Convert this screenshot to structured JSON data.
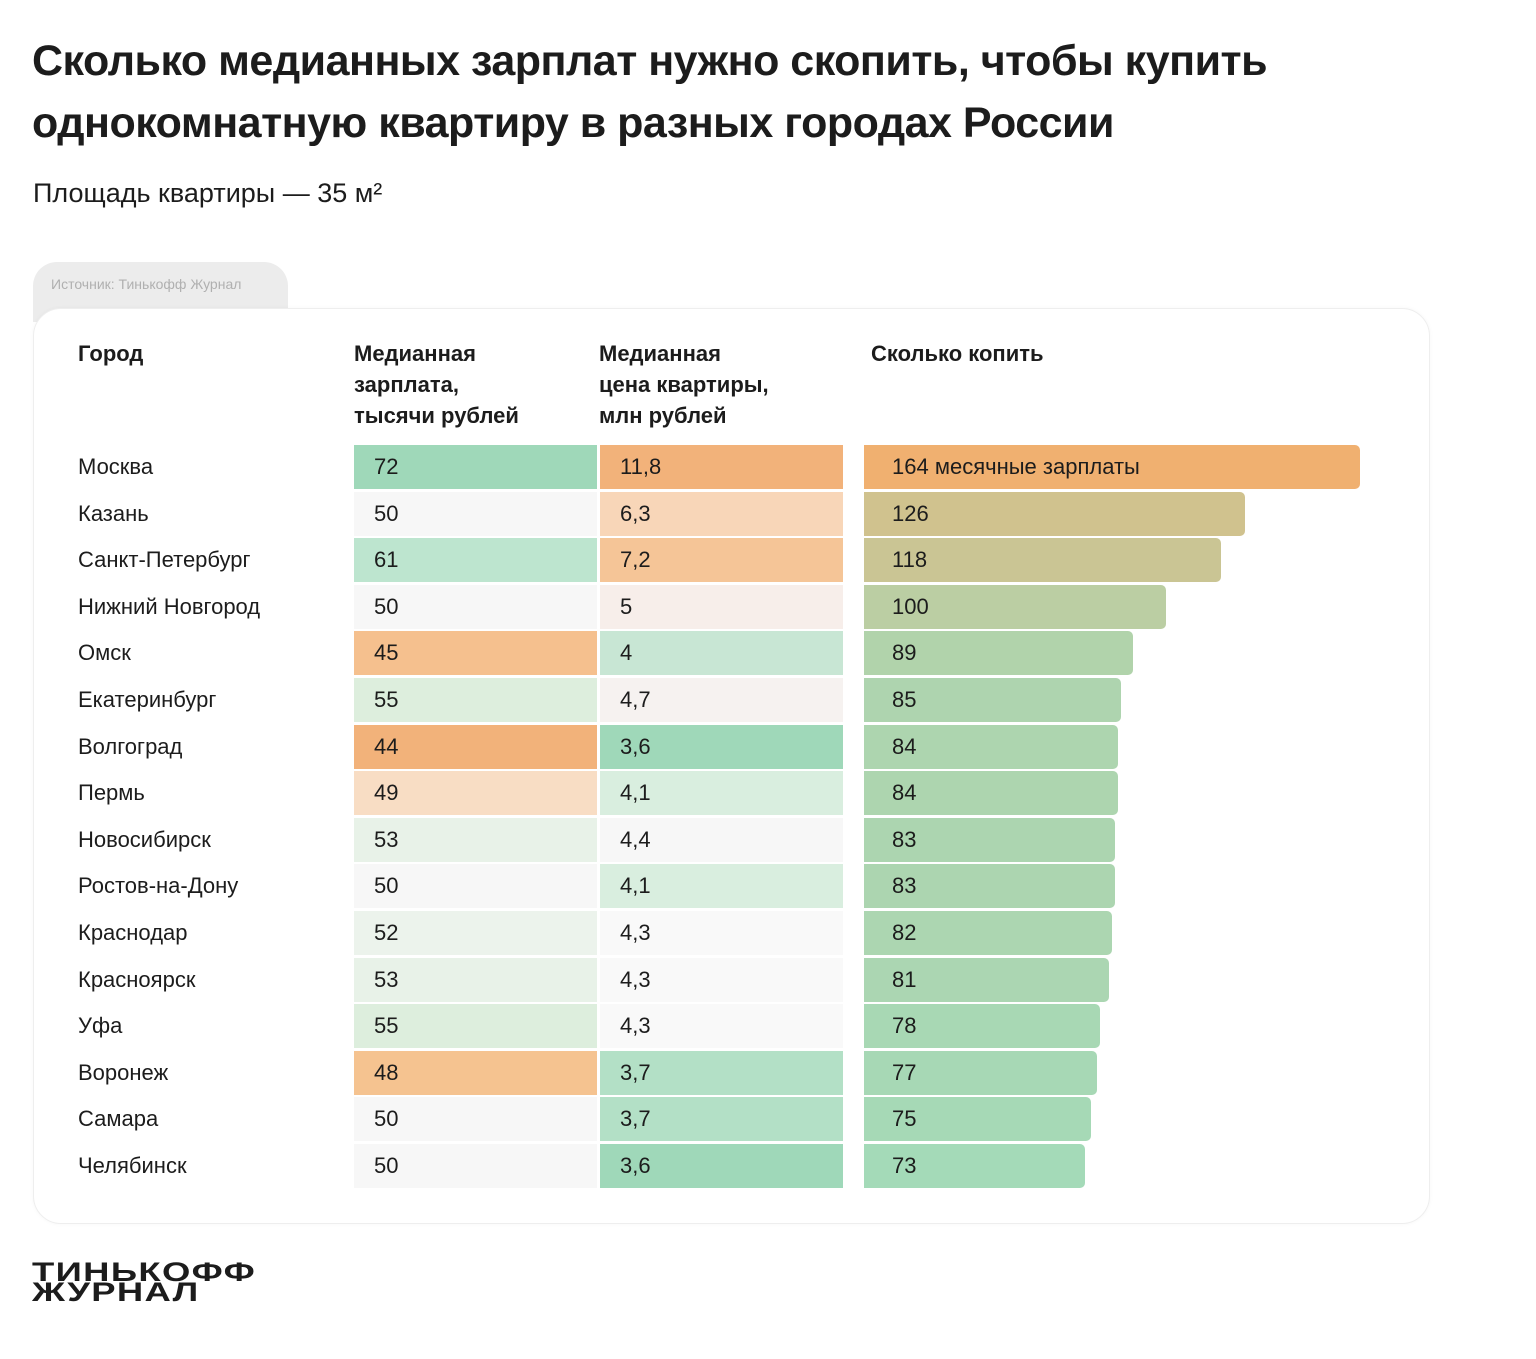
{
  "title": "Сколько медианных зарплат нужно скопить, чтобы купить однокомнатную квартиру в разных городах России",
  "subtitle": "Площадь квартиры — 35 м²",
  "source": "Источник: Тинькофф Журнал",
  "logo": "ТИНЬКОФФ ЖУРНАЛ",
  "chart_data": {
    "type": "table",
    "columns": [
      "Город",
      "Медианная\nзарплата,\nтысячи рублей",
      "Медианная\nцена квартиры,\nмлн рублей",
      "Сколько копить"
    ],
    "unit_label": "месячные зарплаты",
    "rows": [
      {
        "city": "Москва",
        "salary": "72",
        "price": "11,8",
        "months": 164,
        "salary_color": "#9fd8b9",
        "price_color": "#f2b27a"
      },
      {
        "city": "Казань",
        "salary": "50",
        "price": "6,3",
        "months": 126,
        "salary_color": "#f7f7f7",
        "price_color": "#f8d6b8"
      },
      {
        "city": "Санкт-Петербург",
        "salary": "61",
        "price": "7,2",
        "months": 118,
        "salary_color": "#bde5cf",
        "price_color": "#f5c597"
      },
      {
        "city": "Нижний Новгород",
        "salary": "50",
        "price": "5",
        "months": 100,
        "salary_color": "#f7f7f7",
        "price_color": "#f7eeea"
      },
      {
        "city": "Омск",
        "salary": "45",
        "price": "4",
        "months": 89,
        "salary_color": "#f5c08e",
        "price_color": "#c8e6d4"
      },
      {
        "city": "Екатеринбург",
        "salary": "55",
        "price": "4,7",
        "months": 85,
        "salary_color": "#ddeedd",
        "price_color": "#f6f2f0"
      },
      {
        "city": "Волгоград",
        "salary": "44",
        "price": "3,6",
        "months": 84,
        "salary_color": "#f2b27a",
        "price_color": "#9fd8b9"
      },
      {
        "city": "Пермь",
        "salary": "49",
        "price": "4,1",
        "months": 84,
        "salary_color": "#f8ddc4",
        "price_color": "#d9eedf"
      },
      {
        "city": "Новосибирск",
        "salary": "53",
        "price": "4,4",
        "months": 83,
        "salary_color": "#e8f2e8",
        "price_color": "#f7f7f7"
      },
      {
        "city": "Ростов-на-Дону",
        "salary": "50",
        "price": "4,1",
        "months": 83,
        "salary_color": "#f7f7f7",
        "price_color": "#d9eedf"
      },
      {
        "city": "Краснодар",
        "salary": "52",
        "price": "4,3",
        "months": 82,
        "salary_color": "#ecf3ec",
        "price_color": "#f9f9f9"
      },
      {
        "city": "Красноярск",
        "salary": "53",
        "price": "4,3",
        "months": 81,
        "salary_color": "#e8f2e8",
        "price_color": "#f9f9f9"
      },
      {
        "city": "Уфа",
        "salary": "55",
        "price": "4,3",
        "months": 78,
        "salary_color": "#ddeedd",
        "price_color": "#f9f9f9"
      },
      {
        "city": "Воронеж",
        "salary": "48",
        "price": "3,7",
        "months": 77,
        "salary_color": "#f5c390",
        "price_color": "#b3e0c6"
      },
      {
        "city": "Самара",
        "salary": "50",
        "price": "3,7",
        "months": 75,
        "salary_color": "#f7f7f7",
        "price_color": "#b3e0c6"
      },
      {
        "city": "Челябинск",
        "salary": "50",
        "price": "3,6",
        "months": 73,
        "salary_color": "#f7f7f7",
        "price_color": "#9fd8b9"
      }
    ],
    "bar_color_high": "#f0b070",
    "bar_color_low": "#a4dab8"
  }
}
